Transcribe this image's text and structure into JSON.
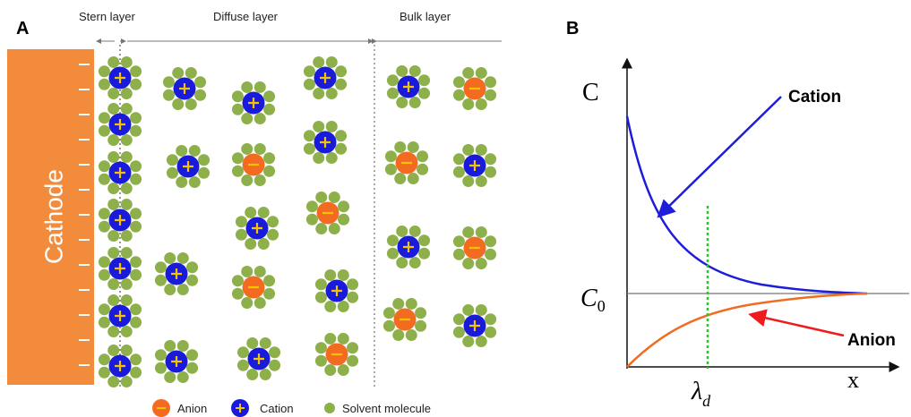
{
  "panels": {
    "a": {
      "label": "A",
      "layers": {
        "stern": "Stern layer",
        "diffuse": "Diffuse layer",
        "bulk": "Bulk layer"
      },
      "electrode": "Cathode",
      "legend": {
        "anion": "Anion",
        "cation": "Cation",
        "solvent": "Solvent molecule"
      }
    },
    "b": {
      "label": "B",
      "y_axis": "C",
      "x_axis": "x",
      "c0": {
        "main": "C",
        "sub": "0"
      },
      "debye": {
        "main": "λ",
        "sub": "d"
      },
      "cation": "Cation",
      "anion": "Anion"
    }
  }
}
